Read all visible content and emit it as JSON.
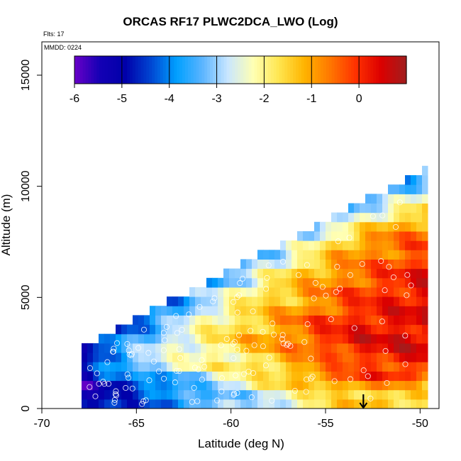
{
  "chart_data": {
    "type": "heatmap",
    "title": "ORCAS RF17 PLWC2DCA_LWO (Log)",
    "xlabel": "Latitude (deg N)",
    "ylabel": "Altitude (m)",
    "flights_note": "Flts: 17",
    "date_note": "MMDD: 0224",
    "xlim": [
      -70,
      -49
    ],
    "ylim": [
      0,
      16500
    ],
    "x_ticks": [
      -70,
      -65,
      -60,
      -55,
      -50
    ],
    "x_tick_labels": [
      "-70",
      "-65",
      "-60",
      "-55",
      "-50"
    ],
    "y_ticks": [
      0,
      5000,
      10000,
      15000
    ],
    "y_tick_labels": [
      "0",
      "5000",
      "10000",
      "15000"
    ],
    "colorbar": {
      "range": [
        -6,
        1
      ],
      "ticks": [
        -6,
        -5,
        -4,
        -3,
        -2,
        -1,
        0
      ],
      "tick_labels": [
        "-6",
        "-5",
        "-4",
        "-3",
        "-2",
        "-1",
        "0"
      ],
      "colors": [
        "#6a00c8",
        "#1400b4",
        "#0000aa",
        "#0046d2",
        "#00a0ff",
        "#5ab4ff",
        "#c8e6ff",
        "#ffffb4",
        "#ffe650",
        "#ffb400",
        "#ff7800",
        "#ff3200",
        "#dc0000",
        "#a01e1e"
      ]
    },
    "arrow_latitude": -53,
    "heat_band_values": [
      [
        -5.2,
        -4.6,
        -4.2,
        -3.8,
        -3.3,
        -2.8,
        -2.3,
        -1.8,
        -1.4,
        -1.3,
        -1.6
      ],
      [
        -5.5,
        -5.0,
        -4.4,
        -3.6,
        -2.8,
        -2.2,
        -1.6,
        -1.1,
        -0.7,
        -0.9,
        -1.8
      ],
      [
        -5.0,
        -4.4,
        -3.8,
        -3.2,
        -2.6,
        -2.0,
        -1.3,
        -0.6,
        -0.2,
        -0.1,
        -0.4
      ],
      [
        -4.5,
        -3.6,
        -2.8,
        -2.4,
        -2.0,
        -1.6,
        -1.2,
        -0.8,
        -0.4,
        -0.1,
        0.1
      ],
      [
        -4.0,
        -3.4,
        -2.9,
        -2.5,
        -2.1,
        -1.7,
        -1.2,
        -0.6,
        0.0,
        0.2,
        0.4
      ],
      [
        -3.8,
        -3.3,
        -2.9,
        -2.4,
        -1.9,
        -1.4,
        -0.8,
        -0.2,
        0.2,
        0.3,
        0.5
      ],
      [
        -3.6,
        -3.2,
        -2.8,
        -2.3,
        -1.7,
        -1.2,
        -0.7,
        -0.1,
        0.3,
        0.4,
        0.5
      ],
      [
        -3.8,
        -3.4,
        -3.0,
        -2.5,
        -2.0,
        -1.4,
        -0.8,
        -0.2,
        0.2,
        0.3,
        0.4
      ],
      [
        -3.5,
        -3.2,
        -2.9,
        -2.5,
        -2.0,
        -1.6,
        -1.1,
        -0.5,
        0.0,
        0.2,
        0.4
      ],
      [
        -3.7,
        -3.4,
        -3.0,
        -2.7,
        -2.3,
        -1.8,
        -1.3,
        -0.7,
        -0.2,
        0.1,
        0.3
      ],
      [
        -3.3,
        -3.0,
        -2.7,
        -2.4,
        -2.0,
        -1.6,
        -1.2,
        -0.7,
        -0.2,
        0.1,
        0.4
      ],
      [
        -3.5,
        -3.3,
        -3.0,
        -2.7,
        -2.4,
        -2.0,
        -1.5,
        -1.0,
        -0.4,
        0.0,
        0.3
      ],
      [
        -3.4,
        -3.2,
        -2.9,
        -2.6,
        -2.3,
        -1.9,
        -1.5,
        -1.0,
        -0.5,
        -0.1,
        0.3
      ],
      [
        -3.6,
        -3.4,
        -3.1,
        -2.8,
        -2.5,
        -2.1,
        -1.7,
        -1.2,
        -0.7,
        -0.3,
        0.1
      ],
      [
        -3.9,
        -3.6,
        -3.3,
        -3.0,
        -2.7,
        -2.3,
        -1.8,
        -1.4,
        -0.9,
        -0.5,
        -0.2
      ],
      [
        -3.9,
        -3.6,
        -3.3,
        -3.0,
        -2.7,
        -2.4,
        -2.0,
        -1.6,
        -1.2,
        -0.8,
        -0.5
      ],
      [
        -4.0,
        -3.7,
        -3.4,
        -3.1,
        -2.8,
        -2.5,
        -2.1,
        -1.8,
        -1.4,
        -1.1,
        -0.8
      ],
      [
        -4.2,
        -3.9,
        -3.6,
        -3.3,
        -3.0,
        -2.7,
        -2.4,
        -2.1,
        -1.8,
        -1.5,
        -1.2
      ],
      [
        -4.4,
        -4.1,
        -3.8,
        -3.5,
        -3.2,
        -2.9,
        -2.6,
        -2.3,
        -2.0,
        -1.8,
        -1.6
      ],
      [
        -4.6,
        -4.3,
        -4.0,
        -3.7,
        -3.4,
        -3.1,
        -2.8,
        -2.5,
        -2.3,
        -2.1,
        -2.0
      ],
      [
        -4.8,
        -4.5,
        -4.2,
        -3.9,
        -3.6,
        -3.3,
        -3.0,
        -2.8,
        -2.6,
        -2.4,
        -2.2
      ],
      [
        -4.9,
        -4.6,
        -4.4,
        -4.1,
        -3.8,
        -3.5,
        -3.2,
        -3.0,
        -2.8,
        -2.6,
        -2.4
      ]
    ]
  }
}
